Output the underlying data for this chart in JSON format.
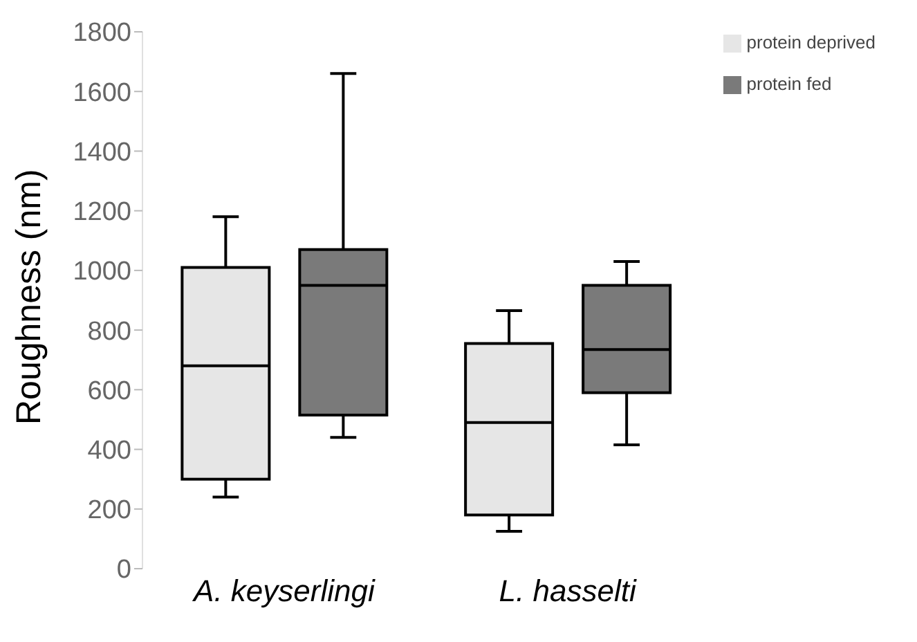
{
  "chart_data": {
    "type": "box",
    "ylabel": "Roughness (nm)",
    "categories": [
      "A. keyserlingi",
      "L. hasselti"
    ],
    "ylim": [
      0,
      1800
    ],
    "yticks": [
      0,
      200,
      400,
      600,
      800,
      1000,
      1200,
      1400,
      1600,
      1800
    ],
    "grid": false,
    "legend": "top right",
    "series": [
      {
        "name": "protein deprived",
        "color": "#e6e6e6",
        "boxes": [
          {
            "low": 240,
            "q1": 300,
            "median": 680,
            "q3": 1010,
            "high": 1180
          },
          {
            "low": 125,
            "q1": 180,
            "median": 490,
            "q3": 755,
            "high": 865
          }
        ]
      },
      {
        "name": "protein fed",
        "color": "#7a7a7a",
        "boxes": [
          {
            "low": 440,
            "q1": 515,
            "median": 950,
            "q3": 1070,
            "high": 1660
          },
          {
            "low": 415,
            "q1": 590,
            "median": 735,
            "q3": 950,
            "high": 1030
          }
        ]
      }
    ]
  }
}
